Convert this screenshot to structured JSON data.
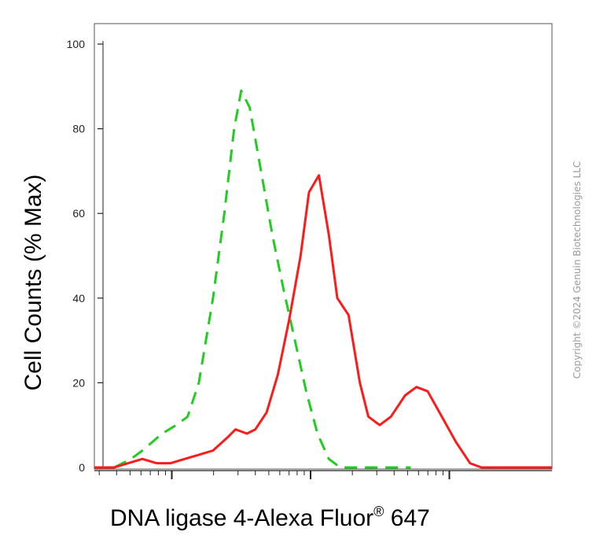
{
  "chart_data": {
    "type": "line",
    "xlabel": "DNA ligase 4-Alexa Fluor",
    "xlabel_superscript": "®",
    "xlabel_suffix": " 647",
    "ylabel": "Cell Counts (% Max)",
    "ylim": [
      0,
      100
    ],
    "xscale": "log",
    "yticks": [
      0,
      20,
      40,
      60,
      80,
      100
    ],
    "grid": false,
    "legend": "none",
    "series": [
      {
        "color": "#22cc22",
        "style": "dashed",
        "points": [
          [
            0.13,
            0
          ],
          [
            0.2,
            0
          ],
          [
            0.26,
            2
          ],
          [
            0.3,
            4
          ],
          [
            0.37,
            8
          ],
          [
            0.42,
            10
          ],
          [
            0.46,
            12
          ],
          [
            0.5,
            20
          ],
          [
            0.55,
            40
          ],
          [
            0.59,
            60
          ],
          [
            0.625,
            80
          ],
          [
            0.65,
            89
          ],
          [
            0.68,
            85
          ],
          [
            0.72,
            70
          ],
          [
            0.76,
            55
          ],
          [
            0.8,
            42
          ],
          [
            0.84,
            30
          ],
          [
            0.88,
            18
          ],
          [
            0.92,
            8
          ],
          [
            0.96,
            2
          ],
          [
            1.0,
            0
          ],
          [
            1.1,
            0
          ],
          [
            1.25,
            0
          ]
        ]
      },
      {
        "color": "#ff1a1a",
        "style": "solid",
        "points": [
          [
            0.13,
            0
          ],
          [
            0.2,
            0
          ],
          [
            0.25,
            1
          ],
          [
            0.3,
            2
          ],
          [
            0.35,
            1
          ],
          [
            0.4,
            1
          ],
          [
            0.45,
            2
          ],
          [
            0.5,
            3
          ],
          [
            0.55,
            4
          ],
          [
            0.6,
            7
          ],
          [
            0.63,
            9
          ],
          [
            0.67,
            8
          ],
          [
            0.7,
            9
          ],
          [
            0.74,
            13
          ],
          [
            0.78,
            22
          ],
          [
            0.82,
            35
          ],
          [
            0.86,
            50
          ],
          [
            0.89,
            65
          ],
          [
            0.925,
            69
          ],
          [
            0.96,
            55
          ],
          [
            0.99,
            40
          ],
          [
            1.03,
            36
          ],
          [
            1.07,
            20
          ],
          [
            1.1,
            12
          ],
          [
            1.14,
            10
          ],
          [
            1.18,
            12
          ],
          [
            1.23,
            17
          ],
          [
            1.27,
            19
          ],
          [
            1.31,
            18
          ],
          [
            1.36,
            12
          ],
          [
            1.41,
            6
          ],
          [
            1.46,
            1
          ],
          [
            1.5,
            0
          ],
          [
            1.6,
            0
          ],
          [
            1.7,
            0
          ],
          [
            1.75,
            0
          ]
        ]
      }
    ]
  },
  "copyright": "Copyright ©2024 Genuin Biotechnologies LLC"
}
